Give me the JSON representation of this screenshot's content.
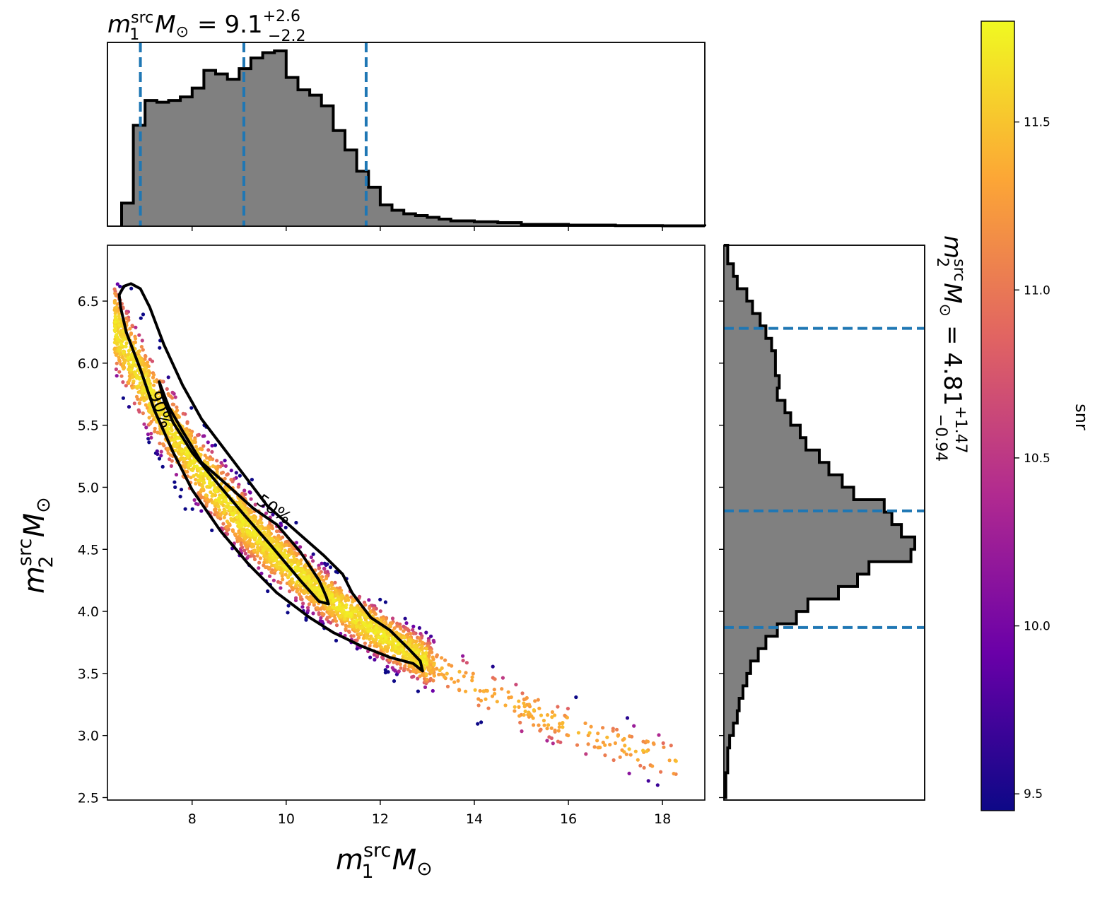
{
  "chart_data": {
    "type": "scatter",
    "title": {
      "m1": {
        "sym": "m",
        "sub": "1",
        "sup": "src",
        "unit": "M",
        "eq": "=",
        "value": "9.1",
        "plus": "+2.6",
        "minus": "−2.2"
      },
      "m2": {
        "sym": "m",
        "sub": "2",
        "sup": "src",
        "unit": "M",
        "eq": "=",
        "value": "4.81",
        "plus": "+1.47",
        "minus": "−0.94"
      }
    },
    "xlabel": {
      "sym": "m",
      "sub": "1",
      "sup": "src",
      "unit": "M"
    },
    "ylabel": {
      "sym": "m",
      "sub": "2",
      "sup": "src",
      "unit": "M"
    },
    "xlim": [
      6.2,
      18.9
    ],
    "ylim": [
      2.48,
      6.95
    ],
    "xticks": [
      "8",
      "10",
      "12",
      "14",
      "16",
      "18"
    ],
    "yticks": [
      "2.5",
      "3.0",
      "3.5",
      "4.0",
      "4.5",
      "5.0",
      "5.5",
      "6.0",
      "6.5"
    ],
    "colorbar": {
      "label": "snr",
      "range": [
        9.45,
        11.8
      ],
      "ticks": [
        "9.5",
        "10.0",
        "10.5",
        "11.0",
        "11.5"
      ],
      "colormap": "plasma",
      "colors": [
        "#0d0887",
        "#6a00a8",
        "#b12a90",
        "#e16462",
        "#fca636",
        "#f0f921"
      ]
    },
    "m1_histogram": {
      "bin_edges": [
        6.5,
        6.75,
        7.0,
        7.25,
        7.5,
        7.75,
        8.0,
        8.25,
        8.5,
        8.75,
        9.0,
        9.25,
        9.5,
        9.75,
        10.0,
        10.25,
        10.5,
        10.75,
        11.0,
        11.25,
        11.5,
        11.75,
        12.0,
        12.25,
        12.5,
        12.75,
        13.0,
        13.25,
        13.5,
        14.0,
        14.5,
        15.0,
        16.0,
        17.0,
        18.0,
        18.9
      ],
      "counts": [
        0.13,
        0.57,
        0.71,
        0.7,
        0.71,
        0.73,
        0.78,
        0.88,
        0.86,
        0.83,
        0.89,
        0.95,
        0.98,
        0.99,
        0.84,
        0.77,
        0.74,
        0.68,
        0.54,
        0.43,
        0.31,
        0.22,
        0.12,
        0.09,
        0.07,
        0.06,
        0.05,
        0.04,
        0.03,
        0.025,
        0.02,
        0.01,
        0.006,
        0.003,
        0.002
      ],
      "quantiles": [
        6.9,
        9.1,
        11.7
      ]
    },
    "m2_histogram": {
      "bin_edges": [
        2.5,
        2.7,
        2.9,
        3.0,
        3.1,
        3.2,
        3.3,
        3.4,
        3.5,
        3.6,
        3.7,
        3.8,
        3.9,
        4.0,
        4.1,
        4.2,
        4.3,
        4.4,
        4.5,
        4.6,
        4.7,
        4.8,
        4.9,
        5.0,
        5.1,
        5.2,
        5.3,
        5.4,
        5.5,
        5.6,
        5.7,
        5.8,
        5.9,
        6.0,
        6.1,
        6.2,
        6.3,
        6.4,
        6.5,
        6.6,
        6.7,
        6.8,
        6.95
      ],
      "counts": [
        0.01,
        0.02,
        0.03,
        0.05,
        0.07,
        0.08,
        0.1,
        0.12,
        0.14,
        0.18,
        0.22,
        0.28,
        0.38,
        0.44,
        0.6,
        0.7,
        0.76,
        0.98,
        1.0,
        0.93,
        0.88,
        0.84,
        0.68,
        0.62,
        0.55,
        0.5,
        0.43,
        0.4,
        0.35,
        0.32,
        0.28,
        0.29,
        0.27,
        0.27,
        0.25,
        0.22,
        0.19,
        0.15,
        0.12,
        0.07,
        0.05,
        0.02
      ],
      "quantiles": [
        3.87,
        4.81,
        6.28
      ]
    },
    "contours": [
      {
        "name": "90%",
        "x": [
          6.45,
          6.55,
          6.7,
          6.9,
          7.1,
          7.4,
          7.8,
          8.2,
          8.6,
          9.1,
          9.6,
          10.2,
          10.8,
          11.2,
          11.4,
          11.6,
          11.8,
          12.2,
          12.6,
          12.85,
          12.9,
          12.7,
          12.2,
          11.6,
          11.0,
          10.5,
          9.8,
          9.2,
          8.6,
          8.0,
          7.6,
          7.2,
          6.9,
          6.6,
          6.48,
          6.45
        ],
        "y": [
          6.55,
          6.62,
          6.64,
          6.6,
          6.45,
          6.15,
          5.82,
          5.55,
          5.35,
          5.1,
          4.85,
          4.65,
          4.45,
          4.3,
          4.15,
          4.05,
          3.95,
          3.85,
          3.7,
          3.6,
          3.52,
          3.58,
          3.63,
          3.72,
          3.83,
          3.95,
          4.15,
          4.38,
          4.65,
          4.98,
          5.28,
          5.62,
          5.95,
          6.25,
          6.45,
          6.55
        ]
      },
      {
        "name": "50%",
        "x": [
          7.3,
          7.35,
          7.5,
          7.8,
          8.2,
          8.8,
          9.3,
          9.8,
          10.3,
          10.7,
          10.85,
          10.9,
          10.7,
          10.3,
          9.7,
          9.1,
          8.5,
          8.0,
          7.6,
          7.4,
          7.3
        ],
        "y": [
          5.85,
          5.8,
          5.65,
          5.45,
          5.2,
          5.0,
          4.83,
          4.7,
          4.48,
          4.25,
          4.12,
          4.06,
          4.08,
          4.25,
          4.52,
          4.78,
          5.05,
          5.28,
          5.52,
          5.7,
          5.85
        ]
      }
    ]
  }
}
